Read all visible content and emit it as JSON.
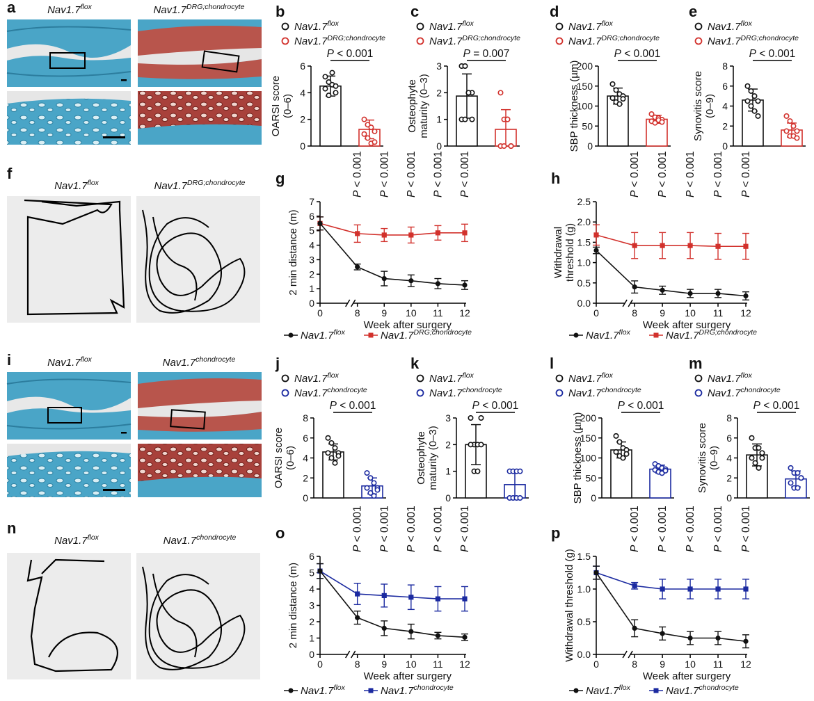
{
  "colors": {
    "control": "#111111",
    "dc": "#d2312c",
    "ch": "#1b2aa0"
  },
  "genotypes": {
    "flox": "Nav1.7",
    "flox_sup": "flox",
    "dc": "Nav1.7",
    "dc_sup": "DRG;chondrocyte",
    "ch": "Nav1.7",
    "ch_sup": "chondrocyte"
  },
  "panels": {
    "a": {
      "letter": "a",
      "images": [
        "safranin-O stained joint section, Nav1.7flox",
        "safranin-O stained joint section, Nav1.7DRG;chondrocyte"
      ]
    },
    "f": {
      "letter": "f",
      "images": [
        "open-field track, Nav1.7flox",
        "open-field track, Nav1.7DRG;chondrocyte"
      ]
    },
    "i": {
      "letter": "i",
      "images": [
        "safranin-O stained joint section, Nav1.7flox",
        "safranin-O stained joint section, Nav1.7chondrocyte"
      ]
    },
    "n": {
      "letter": "n",
      "images": [
        "open-field track, Nav1.7flox",
        "open-field track, Nav1.7chondrocyte"
      ]
    }
  },
  "line_legend_1": {
    "series": [
      "Nav1.7flox",
      "Nav1.7DRG;chondrocyte"
    ]
  },
  "line_legend_2": {
    "series": [
      "Nav1.7flox",
      "Nav1.7chondrocyte"
    ]
  },
  "chart_data": [
    {
      "id": "b",
      "type": "bar",
      "letter": "b",
      "categories": [
        "Nav1.7flox",
        "Nav1.7DRG;chondrocyte"
      ],
      "values": [
        4.5,
        1.25
      ],
      "errors": [
        0.75,
        0.7
      ],
      "points": [
        [
          5.2,
          4.8,
          4.6,
          4.5,
          4.3,
          3.8,
          5.5,
          4.0
        ],
        [
          2.0,
          1.6,
          1.4,
          1.1,
          0.9,
          0.6,
          0.2,
          0.3
        ]
      ],
      "ylabel": "OARSI score\n(0–6)",
      "ylim": [
        0,
        6
      ],
      "yticks": [
        0,
        2,
        4,
        6
      ],
      "pvalue": "P < 0.001"
    },
    {
      "id": "c",
      "type": "bar",
      "letter": "c",
      "categories": [
        "Nav1.7flox",
        "Nav1.7DRG;chondrocyte"
      ],
      "values": [
        1.875,
        0.625
      ],
      "errors": [
        0.83,
        0.74
      ],
      "points": [
        [
          3,
          3,
          2,
          2,
          1,
          1,
          2,
          1
        ],
        [
          2,
          1,
          1,
          0,
          0,
          0,
          1,
          0
        ]
      ],
      "ylabel": "Osteophyte\nmaturity (0–3)",
      "ylim": [
        0,
        3
      ],
      "yticks": [
        0,
        1,
        2,
        3
      ],
      "pvalue": "P = 0.007"
    },
    {
      "id": "d",
      "type": "bar",
      "letter": "d",
      "categories": [
        "Nav1.7flox",
        "Nav1.7DRG;chondrocyte"
      ],
      "values": [
        125,
        67
      ],
      "errors": [
        20,
        10
      ],
      "points": [
        [
          155,
          140,
          130,
          125,
          120,
          110,
          105,
          118
        ],
        [
          80,
          72,
          70,
          66,
          62,
          58,
          65,
          60
        ]
      ],
      "ylabel": "SBP thickness (µm)",
      "ylim": [
        0,
        200
      ],
      "yticks": [
        0,
        50,
        100,
        150,
        200
      ],
      "pvalue": "P < 0.001"
    },
    {
      "id": "e",
      "type": "bar",
      "letter": "e",
      "categories": [
        "Nav1.7flox",
        "Nav1.7DRG;chondrocyte"
      ],
      "values": [
        4.6,
        1.6
      ],
      "errors": [
        1.1,
        0.7
      ],
      "points": [
        [
          6,
          5.5,
          5,
          4.5,
          4.5,
          4,
          3.5,
          3
        ],
        [
          3,
          2.5,
          2,
          1.5,
          1.5,
          1,
          1,
          0.8
        ]
      ],
      "ylabel": "Synovitis score\n(0–9)",
      "ylim": [
        0,
        8
      ],
      "yticks": [
        0,
        2,
        4,
        6,
        8
      ],
      "pvalue": "P < 0.001"
    },
    {
      "id": "g",
      "type": "line",
      "letter": "g",
      "xlabel": "Week after surgery",
      "ylabel": "2 min distance (m)",
      "x": [
        0,
        8,
        9,
        10,
        11,
        12
      ],
      "ylim": [
        0,
        7
      ],
      "yticks": [
        0,
        1,
        2,
        3,
        4,
        5,
        6,
        7
      ],
      "series": [
        {
          "name": "Nav1.7flox",
          "values": [
            5.5,
            2.5,
            1.7,
            1.55,
            1.35,
            1.25
          ],
          "errors": [
            0.45,
            0.2,
            0.5,
            0.4,
            0.35,
            0.3
          ]
        },
        {
          "name": "Nav1.7DRG;chondrocyte",
          "values": [
            5.5,
            4.8,
            4.7,
            4.7,
            4.85,
            4.85
          ],
          "errors": [
            0.45,
            0.6,
            0.45,
            0.55,
            0.5,
            0.6
          ]
        }
      ],
      "pvalues": [
        "P < 0.001",
        "P < 0.001",
        "P < 0.001",
        "P < 0.001",
        "P < 0.001"
      ]
    },
    {
      "id": "h",
      "type": "line",
      "letter": "h",
      "xlabel": "Week after surgery",
      "ylabel": "Withdrawal\nthreshold (g)",
      "x": [
        0,
        8,
        9,
        10,
        11,
        12
      ],
      "ylim": [
        0,
        2.5
      ],
      "yticks": [
        0,
        0.5,
        1.0,
        1.5,
        2.0,
        2.5
      ],
      "series": [
        {
          "name": "Nav1.7flox",
          "values": [
            1.3,
            0.4,
            0.32,
            0.24,
            0.24,
            0.18
          ],
          "errors": [
            0.08,
            0.15,
            0.1,
            0.1,
            0.1,
            0.1
          ]
        },
        {
          "name": "Nav1.7DRG;chondrocyte",
          "values": [
            1.68,
            1.42,
            1.42,
            1.42,
            1.4,
            1.4
          ],
          "errors": [
            0.25,
            0.32,
            0.32,
            0.32,
            0.32,
            0.32
          ]
        }
      ],
      "pvalues": [
        "P < 0.001",
        "P < 0.001",
        "P < 0.001",
        "P < 0.001",
        "P < 0.001"
      ]
    },
    {
      "id": "j",
      "type": "bar",
      "letter": "j",
      "categories": [
        "Nav1.7flox",
        "Nav1.7chondrocyte"
      ],
      "values": [
        4.6,
        1.2
      ],
      "errors": [
        0.8,
        0.8
      ],
      "points": [
        [
          6,
          5.5,
          5,
          4.5,
          4.5,
          4,
          3.5,
          4.2
        ],
        [
          2.5,
          2,
          1.5,
          1,
          1,
          0.5,
          0.2,
          0.8
        ]
      ],
      "ylabel": "OARSI score\n(0–6)",
      "ylim": [
        0,
        8
      ],
      "yticks": [
        0,
        2,
        4,
        6,
        8
      ],
      "pvalue": "P < 0.001"
    },
    {
      "id": "k",
      "type": "bar",
      "letter": "k",
      "categories": [
        "Nav1.7flox",
        "Nav1.7chondrocyte"
      ],
      "values": [
        2.0,
        0.5
      ],
      "errors": [
        0.75,
        0.53
      ],
      "points": [
        [
          3,
          2,
          2,
          2,
          2,
          1,
          1,
          3
        ],
        [
          1,
          1,
          1,
          1,
          0,
          0,
          0,
          0
        ]
      ],
      "ylabel": "Osteophyte\nmaturity (0–3)",
      "ylim": [
        0,
        3
      ],
      "yticks": [
        0,
        1,
        2,
        3
      ],
      "pvalue": "P < 0.001"
    },
    {
      "id": "l",
      "type": "bar",
      "letter": "l",
      "categories": [
        "Nav1.7flox",
        "Nav1.7chondrocyte"
      ],
      "values": [
        120,
        72
      ],
      "errors": [
        20,
        10
      ],
      "points": [
        [
          155,
          140,
          125,
          120,
          115,
          105,
          100,
          110
        ],
        [
          85,
          80,
          75,
          72,
          70,
          65,
          62,
          68
        ]
      ],
      "ylabel": "SBP thickness (µm)",
      "ylim": [
        0,
        200
      ],
      "yticks": [
        0,
        50,
        100,
        150,
        200
      ],
      "pvalue": "P < 0.001"
    },
    {
      "id": "m",
      "type": "bar",
      "letter": "m",
      "categories": [
        "Nav1.7flox",
        "Nav1.7chondrocyte"
      ],
      "values": [
        4.3,
        1.9
      ],
      "errors": [
        1.1,
        0.8
      ],
      "points": [
        [
          6,
          5,
          5,
          4.5,
          4,
          3.5,
          3,
          4
        ],
        [
          3,
          2.5,
          2.5,
          2,
          1.5,
          1,
          1,
          2
        ]
      ],
      "ylabel": "Synovitis score\n(0–9)",
      "ylim": [
        0,
        8
      ],
      "yticks": [
        0,
        2,
        4,
        6,
        8
      ],
      "pvalue": "P < 0.001"
    },
    {
      "id": "o",
      "type": "line",
      "letter": "o",
      "xlabel": "Week after surgery",
      "ylabel": "2 min distance (m)",
      "x": [
        0,
        8,
        9,
        10,
        11,
        12
      ],
      "ylim": [
        0,
        6
      ],
      "yticks": [
        0,
        1,
        2,
        3,
        4,
        5,
        6
      ],
      "series": [
        {
          "name": "Nav1.7flox",
          "values": [
            5.1,
            2.25,
            1.6,
            1.4,
            1.15,
            1.05
          ],
          "errors": [
            0.45,
            0.4,
            0.45,
            0.45,
            0.2,
            0.2
          ]
        },
        {
          "name": "Nav1.7chondrocyte",
          "values": [
            5.1,
            3.7,
            3.6,
            3.5,
            3.4,
            3.4
          ],
          "errors": [
            0.45,
            0.65,
            0.7,
            0.75,
            0.75,
            0.75
          ]
        }
      ],
      "pvalues": [
        "P < 0.001",
        "P < 0.001",
        "P < 0.001",
        "P < 0.001",
        "P < 0.001"
      ]
    },
    {
      "id": "p",
      "type": "line",
      "letter": "p",
      "xlabel": "Week after surgery",
      "ylabel": "Withdrawal threshold (g)",
      "x": [
        0,
        8,
        9,
        10,
        11,
        12
      ],
      "ylim": [
        0,
        1.5
      ],
      "yticks": [
        0,
        0.5,
        1.0,
        1.5
      ],
      "series": [
        {
          "name": "Nav1.7flox",
          "values": [
            1.25,
            0.4,
            0.32,
            0.25,
            0.25,
            0.2
          ],
          "errors": [
            0.1,
            0.13,
            0.1,
            0.1,
            0.1,
            0.1
          ]
        },
        {
          "name": "Nav1.7chondrocyte",
          "values": [
            1.25,
            1.05,
            1.0,
            1.0,
            1.0,
            1.0
          ],
          "errors": [
            0.1,
            0.05,
            0.15,
            0.15,
            0.15,
            0.15
          ]
        }
      ],
      "pvalues": [
        "P < 0.001",
        "P < 0.001",
        "P < 0.001",
        "P < 0.001",
        "P < 0.001"
      ]
    }
  ]
}
